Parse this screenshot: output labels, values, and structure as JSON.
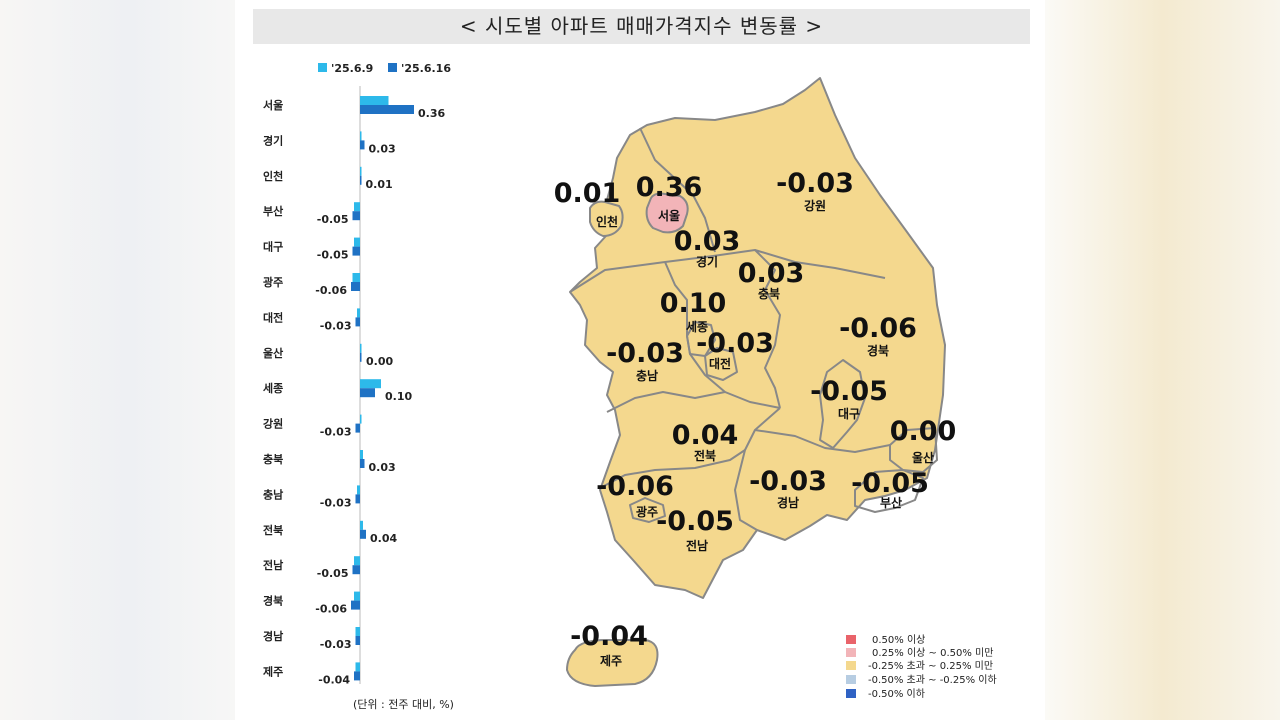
{
  "title": "< 시도별 아파트 매매가격지수 변동률 >",
  "colors": {
    "series_prev": "#2db9ea",
    "series_curr": "#1f72c4",
    "legend_bins": [
      "#e9636a",
      "#f2b4b8",
      "#f4d88e",
      "#b7cde2",
      "#2f62c4"
    ],
    "map_fill": "#f4d88e",
    "seoul_fill": "#f2b4b8"
  },
  "chart_data": [
    {
      "type": "bar",
      "orientation": "horizontal",
      "categories": [
        "서울",
        "경기",
        "인천",
        "부산",
        "대구",
        "광주",
        "대전",
        "울산",
        "세종",
        "강원",
        "충북",
        "충남",
        "전북",
        "전남",
        "경북",
        "경남",
        "제주"
      ],
      "series": [
        {
          "name": "'25.6.9",
          "values": [
            0.19,
            0.01,
            0.0,
            -0.04,
            -0.04,
            -0.05,
            -0.02,
            0.0,
            0.14,
            0.01,
            0.02,
            -0.02,
            0.02,
            -0.04,
            -0.04,
            -0.03,
            -0.03
          ]
        },
        {
          "name": "'25.6.16",
          "values": [
            0.36,
            0.03,
            0.01,
            -0.05,
            -0.05,
            -0.06,
            -0.03,
            0.0,
            0.1,
            -0.03,
            0.03,
            -0.03,
            0.04,
            -0.05,
            -0.06,
            -0.03,
            -0.04
          ]
        }
      ],
      "value_labels": [
        "0.36",
        "0.03",
        "0.01",
        "-0.05",
        "-0.05",
        "-0.06",
        "-0.03",
        "0.00",
        "0.10",
        "-0.03",
        "0.03",
        "-0.03",
        "0.04",
        "-0.05",
        "-0.06",
        "-0.03",
        "-0.04"
      ],
      "legend": {
        "position": "top",
        "items": [
          "'25.6.9",
          "'25.6.16"
        ]
      },
      "unit_note": "(단위 : 전주 대비, %)",
      "xlim": [
        -0.1,
        0.4
      ],
      "grid": false
    },
    {
      "type": "choropleth",
      "regions": [
        {
          "name": "서울",
          "value": "0.36"
        },
        {
          "name": "인천",
          "value": "0.01"
        },
        {
          "name": "경기",
          "value": "0.03"
        },
        {
          "name": "강원",
          "value": "-0.03"
        },
        {
          "name": "충북",
          "value": "0.03"
        },
        {
          "name": "세종",
          "value": "0.10"
        },
        {
          "name": "대전",
          "value": "-0.03"
        },
        {
          "name": "충남",
          "value": "-0.03"
        },
        {
          "name": "경북",
          "value": "-0.06"
        },
        {
          "name": "대구",
          "value": "-0.05"
        },
        {
          "name": "울산",
          "value": "0.00"
        },
        {
          "name": "전북",
          "value": "0.04"
        },
        {
          "name": "광주",
          "value": "-0.06"
        },
        {
          "name": "경남",
          "value": "-0.03"
        },
        {
          "name": "부산",
          "value": "-0.05"
        },
        {
          "name": "전남",
          "value": "-0.05"
        },
        {
          "name": "제주",
          "value": "-0.04"
        }
      ],
      "legend": {
        "position": "bottom-right",
        "items": [
          "0.50% 이상",
          "0.25% 이상 ~ 0.50% 미만",
          "-0.25% 초과 ~ 0.25% 미만",
          "-0.50% 초과 ~ -0.25% 이하",
          "-0.50% 이하"
        ]
      }
    }
  ]
}
